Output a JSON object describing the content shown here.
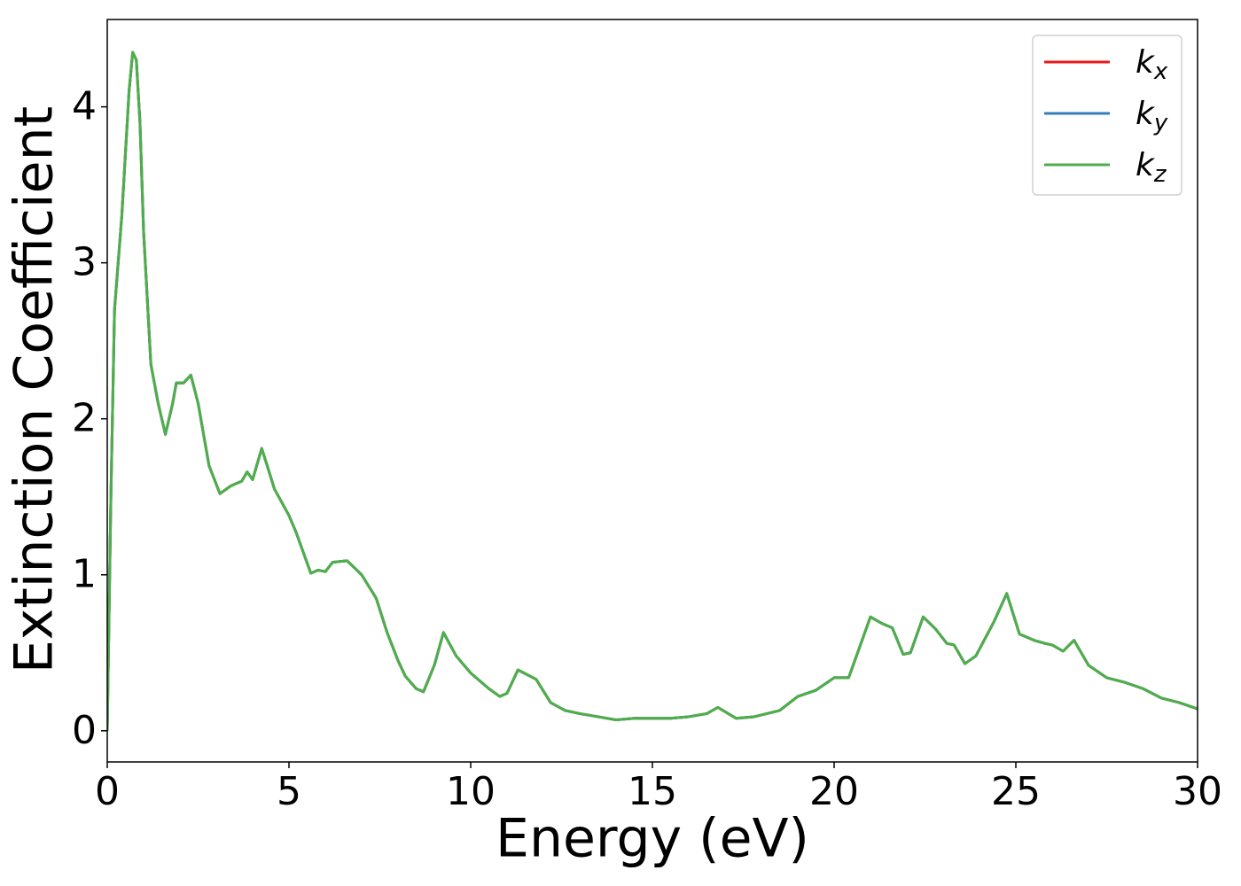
{
  "chart_data": {
    "type": "line",
    "xlabel": "Energy (eV)",
    "ylabel": "Extinction Coefficient",
    "x": [
      0,
      0.1,
      0.2,
      0.4,
      0.6,
      0.7,
      0.8,
      0.9,
      1.0,
      1.2,
      1.4,
      1.6,
      1.8,
      1.9,
      2.1,
      2.3,
      2.5,
      2.8,
      3.1,
      3.4,
      3.7,
      3.85,
      4.0,
      4.25,
      4.4,
      4.6,
      5.0,
      5.2,
      5.6,
      5.8,
      6.0,
      6.2,
      6.6,
      7.0,
      7.4,
      7.7,
      8.0,
      8.2,
      8.5,
      8.7,
      9.0,
      9.25,
      9.6,
      10.0,
      10.5,
      10.8,
      11.0,
      11.3,
      11.8,
      12.2,
      12.6,
      13.0,
      13.5,
      14.0,
      14.5,
      15.0,
      15.5,
      16.0,
      16.5,
      16.8,
      17.3,
      17.8,
      18.5,
      19.0,
      19.5,
      20.0,
      20.4,
      20.8,
      21.0,
      21.3,
      21.6,
      21.9,
      22.1,
      22.45,
      22.8,
      23.1,
      23.3,
      23.6,
      23.9,
      24.4,
      24.75,
      25.1,
      25.5,
      25.8,
      26.0,
      26.3,
      26.6,
      27.0,
      27.5,
      28.0,
      28.5,
      29.0,
      29.5,
      30.0
    ],
    "series": [
      {
        "name": "kx",
        "color": "#e41a1c",
        "values": [
          0,
          1.5,
          2.7,
          3.3,
          4.1,
          4.35,
          4.3,
          3.9,
          3.2,
          2.35,
          2.1,
          1.9,
          2.1,
          2.23,
          2.23,
          2.28,
          2.1,
          1.7,
          1.52,
          1.57,
          1.6,
          1.66,
          1.61,
          1.81,
          1.7,
          1.55,
          1.38,
          1.27,
          1.01,
          1.03,
          1.02,
          1.08,
          1.09,
          1.0,
          0.85,
          0.63,
          0.45,
          0.35,
          0.27,
          0.25,
          0.42,
          0.63,
          0.48,
          0.37,
          0.27,
          0.22,
          0.24,
          0.39,
          0.33,
          0.18,
          0.13,
          0.11,
          0.09,
          0.07,
          0.08,
          0.08,
          0.08,
          0.09,
          0.11,
          0.15,
          0.08,
          0.09,
          0.13,
          0.22,
          0.26,
          0.34,
          0.34,
          0.6,
          0.73,
          0.69,
          0.66,
          0.49,
          0.5,
          0.73,
          0.65,
          0.56,
          0.55,
          0.43,
          0.48,
          0.7,
          0.88,
          0.62,
          0.58,
          0.56,
          0.55,
          0.51,
          0.58,
          0.42,
          0.34,
          0.31,
          0.27,
          0.21,
          0.18,
          0.14
        ]
      },
      {
        "name": "ky",
        "color": "#377eb8",
        "values": [
          0,
          1.5,
          2.7,
          3.3,
          4.1,
          4.35,
          4.3,
          3.9,
          3.2,
          2.35,
          2.1,
          1.9,
          2.1,
          2.23,
          2.23,
          2.28,
          2.1,
          1.7,
          1.52,
          1.57,
          1.6,
          1.66,
          1.61,
          1.81,
          1.7,
          1.55,
          1.38,
          1.27,
          1.01,
          1.03,
          1.02,
          1.08,
          1.09,
          1.0,
          0.85,
          0.63,
          0.45,
          0.35,
          0.27,
          0.25,
          0.42,
          0.63,
          0.48,
          0.37,
          0.27,
          0.22,
          0.24,
          0.39,
          0.33,
          0.18,
          0.13,
          0.11,
          0.09,
          0.07,
          0.08,
          0.08,
          0.08,
          0.09,
          0.11,
          0.15,
          0.08,
          0.09,
          0.13,
          0.22,
          0.26,
          0.34,
          0.34,
          0.6,
          0.73,
          0.69,
          0.66,
          0.49,
          0.5,
          0.73,
          0.65,
          0.56,
          0.55,
          0.43,
          0.48,
          0.7,
          0.88,
          0.62,
          0.58,
          0.56,
          0.55,
          0.51,
          0.58,
          0.42,
          0.34,
          0.31,
          0.27,
          0.21,
          0.18,
          0.14
        ]
      },
      {
        "name": "kz",
        "color": "#4daf4a",
        "values": [
          0,
          1.5,
          2.7,
          3.3,
          4.1,
          4.35,
          4.3,
          3.9,
          3.2,
          2.35,
          2.1,
          1.9,
          2.1,
          2.23,
          2.23,
          2.28,
          2.1,
          1.7,
          1.52,
          1.57,
          1.6,
          1.66,
          1.61,
          1.81,
          1.7,
          1.55,
          1.38,
          1.27,
          1.01,
          1.03,
          1.02,
          1.08,
          1.09,
          1.0,
          0.85,
          0.63,
          0.45,
          0.35,
          0.27,
          0.25,
          0.42,
          0.63,
          0.48,
          0.37,
          0.27,
          0.22,
          0.24,
          0.39,
          0.33,
          0.18,
          0.13,
          0.11,
          0.09,
          0.07,
          0.08,
          0.08,
          0.08,
          0.09,
          0.11,
          0.15,
          0.08,
          0.09,
          0.13,
          0.22,
          0.26,
          0.34,
          0.34,
          0.6,
          0.73,
          0.69,
          0.66,
          0.49,
          0.5,
          0.73,
          0.65,
          0.56,
          0.55,
          0.43,
          0.48,
          0.7,
          0.88,
          0.62,
          0.58,
          0.56,
          0.55,
          0.51,
          0.58,
          0.42,
          0.34,
          0.31,
          0.27,
          0.21,
          0.18,
          0.14
        ]
      }
    ],
    "xlim": [
      0,
      30
    ],
    "xticks": [
      0,
      5,
      10,
      15,
      20,
      25,
      30
    ],
    "ylim": [
      -0.2,
      4.56
    ],
    "yticks": [
      0,
      1,
      2,
      3,
      4
    ],
    "legend": "upper right",
    "grid": false
  }
}
